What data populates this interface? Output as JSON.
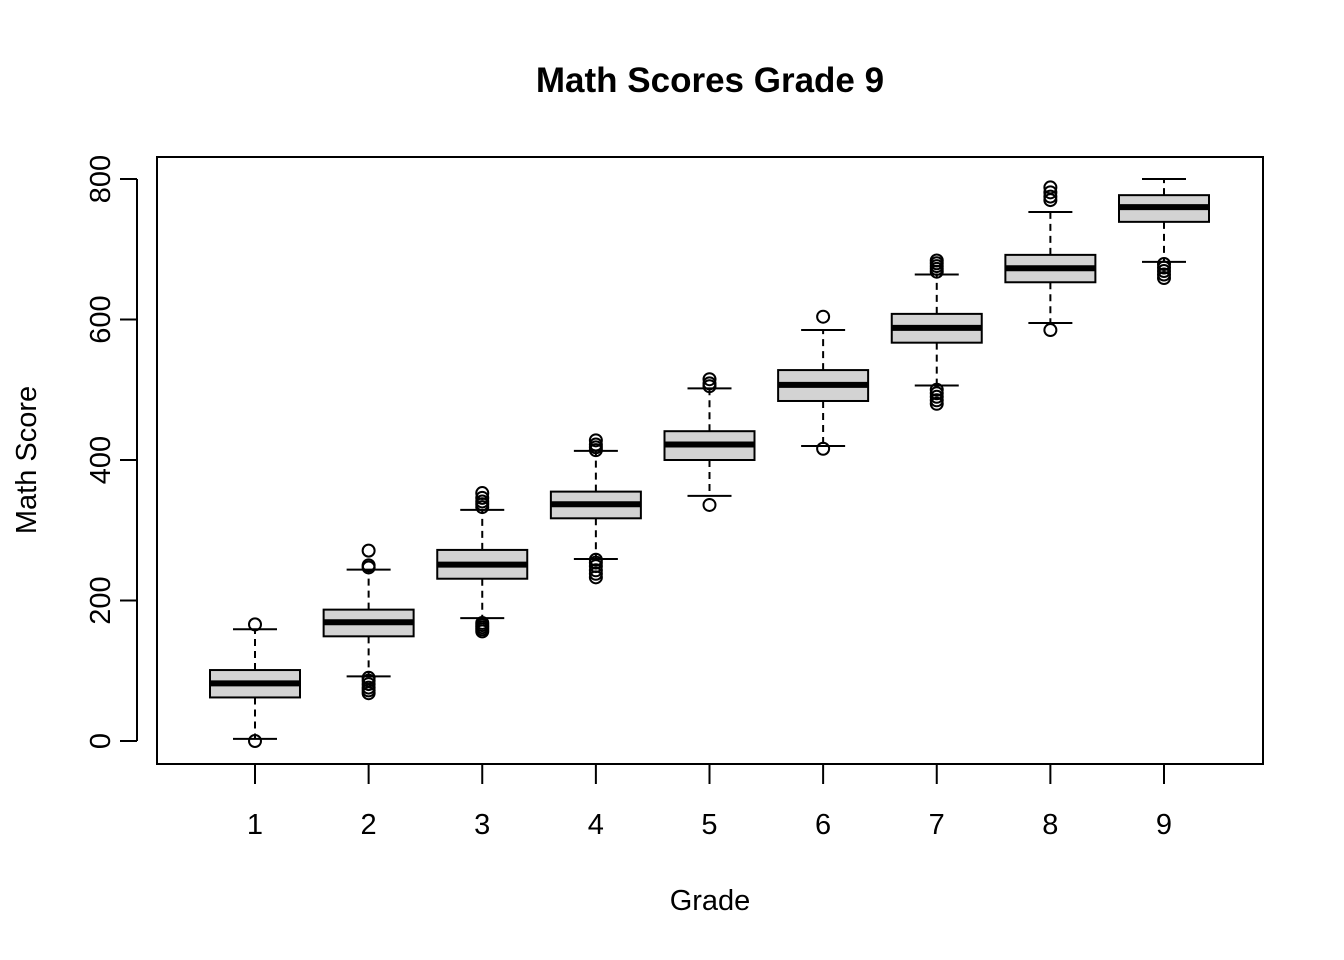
{
  "chart_data": {
    "type": "boxplot",
    "title": "Math Scores Grade 9",
    "xlabel": "Grade",
    "ylabel": "Math Score",
    "ylim": [
      -30,
      830
    ],
    "yticks": [
      0,
      200,
      400,
      600,
      800
    ],
    "categories": [
      "1",
      "2",
      "3",
      "4",
      "5",
      "6",
      "7",
      "8",
      "9"
    ],
    "box_fill": "#d3d3d3",
    "boxes": [
      {
        "category": "1",
        "whisker_low": 3,
        "q1": 62,
        "median": 82,
        "q3": 101,
        "whisker_high": 159,
        "outliers": [
          0,
          166
        ]
      },
      {
        "category": "2",
        "whisker_low": 92,
        "q1": 149,
        "median": 169,
        "q3": 187,
        "whisker_high": 244,
        "outliers": [
          68,
          72,
          76,
          81,
          86,
          90,
          247,
          250,
          271
        ]
      },
      {
        "category": "3",
        "whisker_low": 175,
        "q1": 231,
        "median": 251,
        "q3": 272,
        "whisker_high": 329,
        "outliers": [
          156,
          159,
          162,
          165,
          168,
          333,
          337,
          341,
          346,
          353
        ]
      },
      {
        "category": "4",
        "whisker_low": 259,
        "q1": 317,
        "median": 337,
        "q3": 355,
        "whisker_high": 413,
        "outliers": [
          233,
          238,
          243,
          249,
          254,
          258,
          414,
          418,
          422,
          428
        ]
      },
      {
        "category": "5",
        "whisker_low": 349,
        "q1": 400,
        "median": 422,
        "q3": 441,
        "whisker_high": 502,
        "outliers": [
          336,
          505,
          509,
          515
        ]
      },
      {
        "category": "6",
        "whisker_low": 420,
        "q1": 484,
        "median": 507,
        "q3": 528,
        "whisker_high": 585,
        "outliers": [
          416,
          604
        ]
      },
      {
        "category": "7",
        "whisker_low": 506,
        "q1": 567,
        "median": 588,
        "q3": 608,
        "whisker_high": 664,
        "outliers": [
          480,
          485,
          490,
          495,
          500,
          668,
          672,
          676,
          680,
          684
        ]
      },
      {
        "category": "8",
        "whisker_low": 595,
        "q1": 653,
        "median": 673,
        "q3": 692,
        "whisker_high": 753,
        "outliers": [
          585,
          770,
          775,
          781,
          788
        ]
      },
      {
        "category": "9",
        "whisker_low": 682,
        "q1": 739,
        "median": 760,
        "q3": 777,
        "whisker_high": 800,
        "outliers": [
          659,
          664,
          669,
          674,
          679
        ]
      }
    ]
  }
}
